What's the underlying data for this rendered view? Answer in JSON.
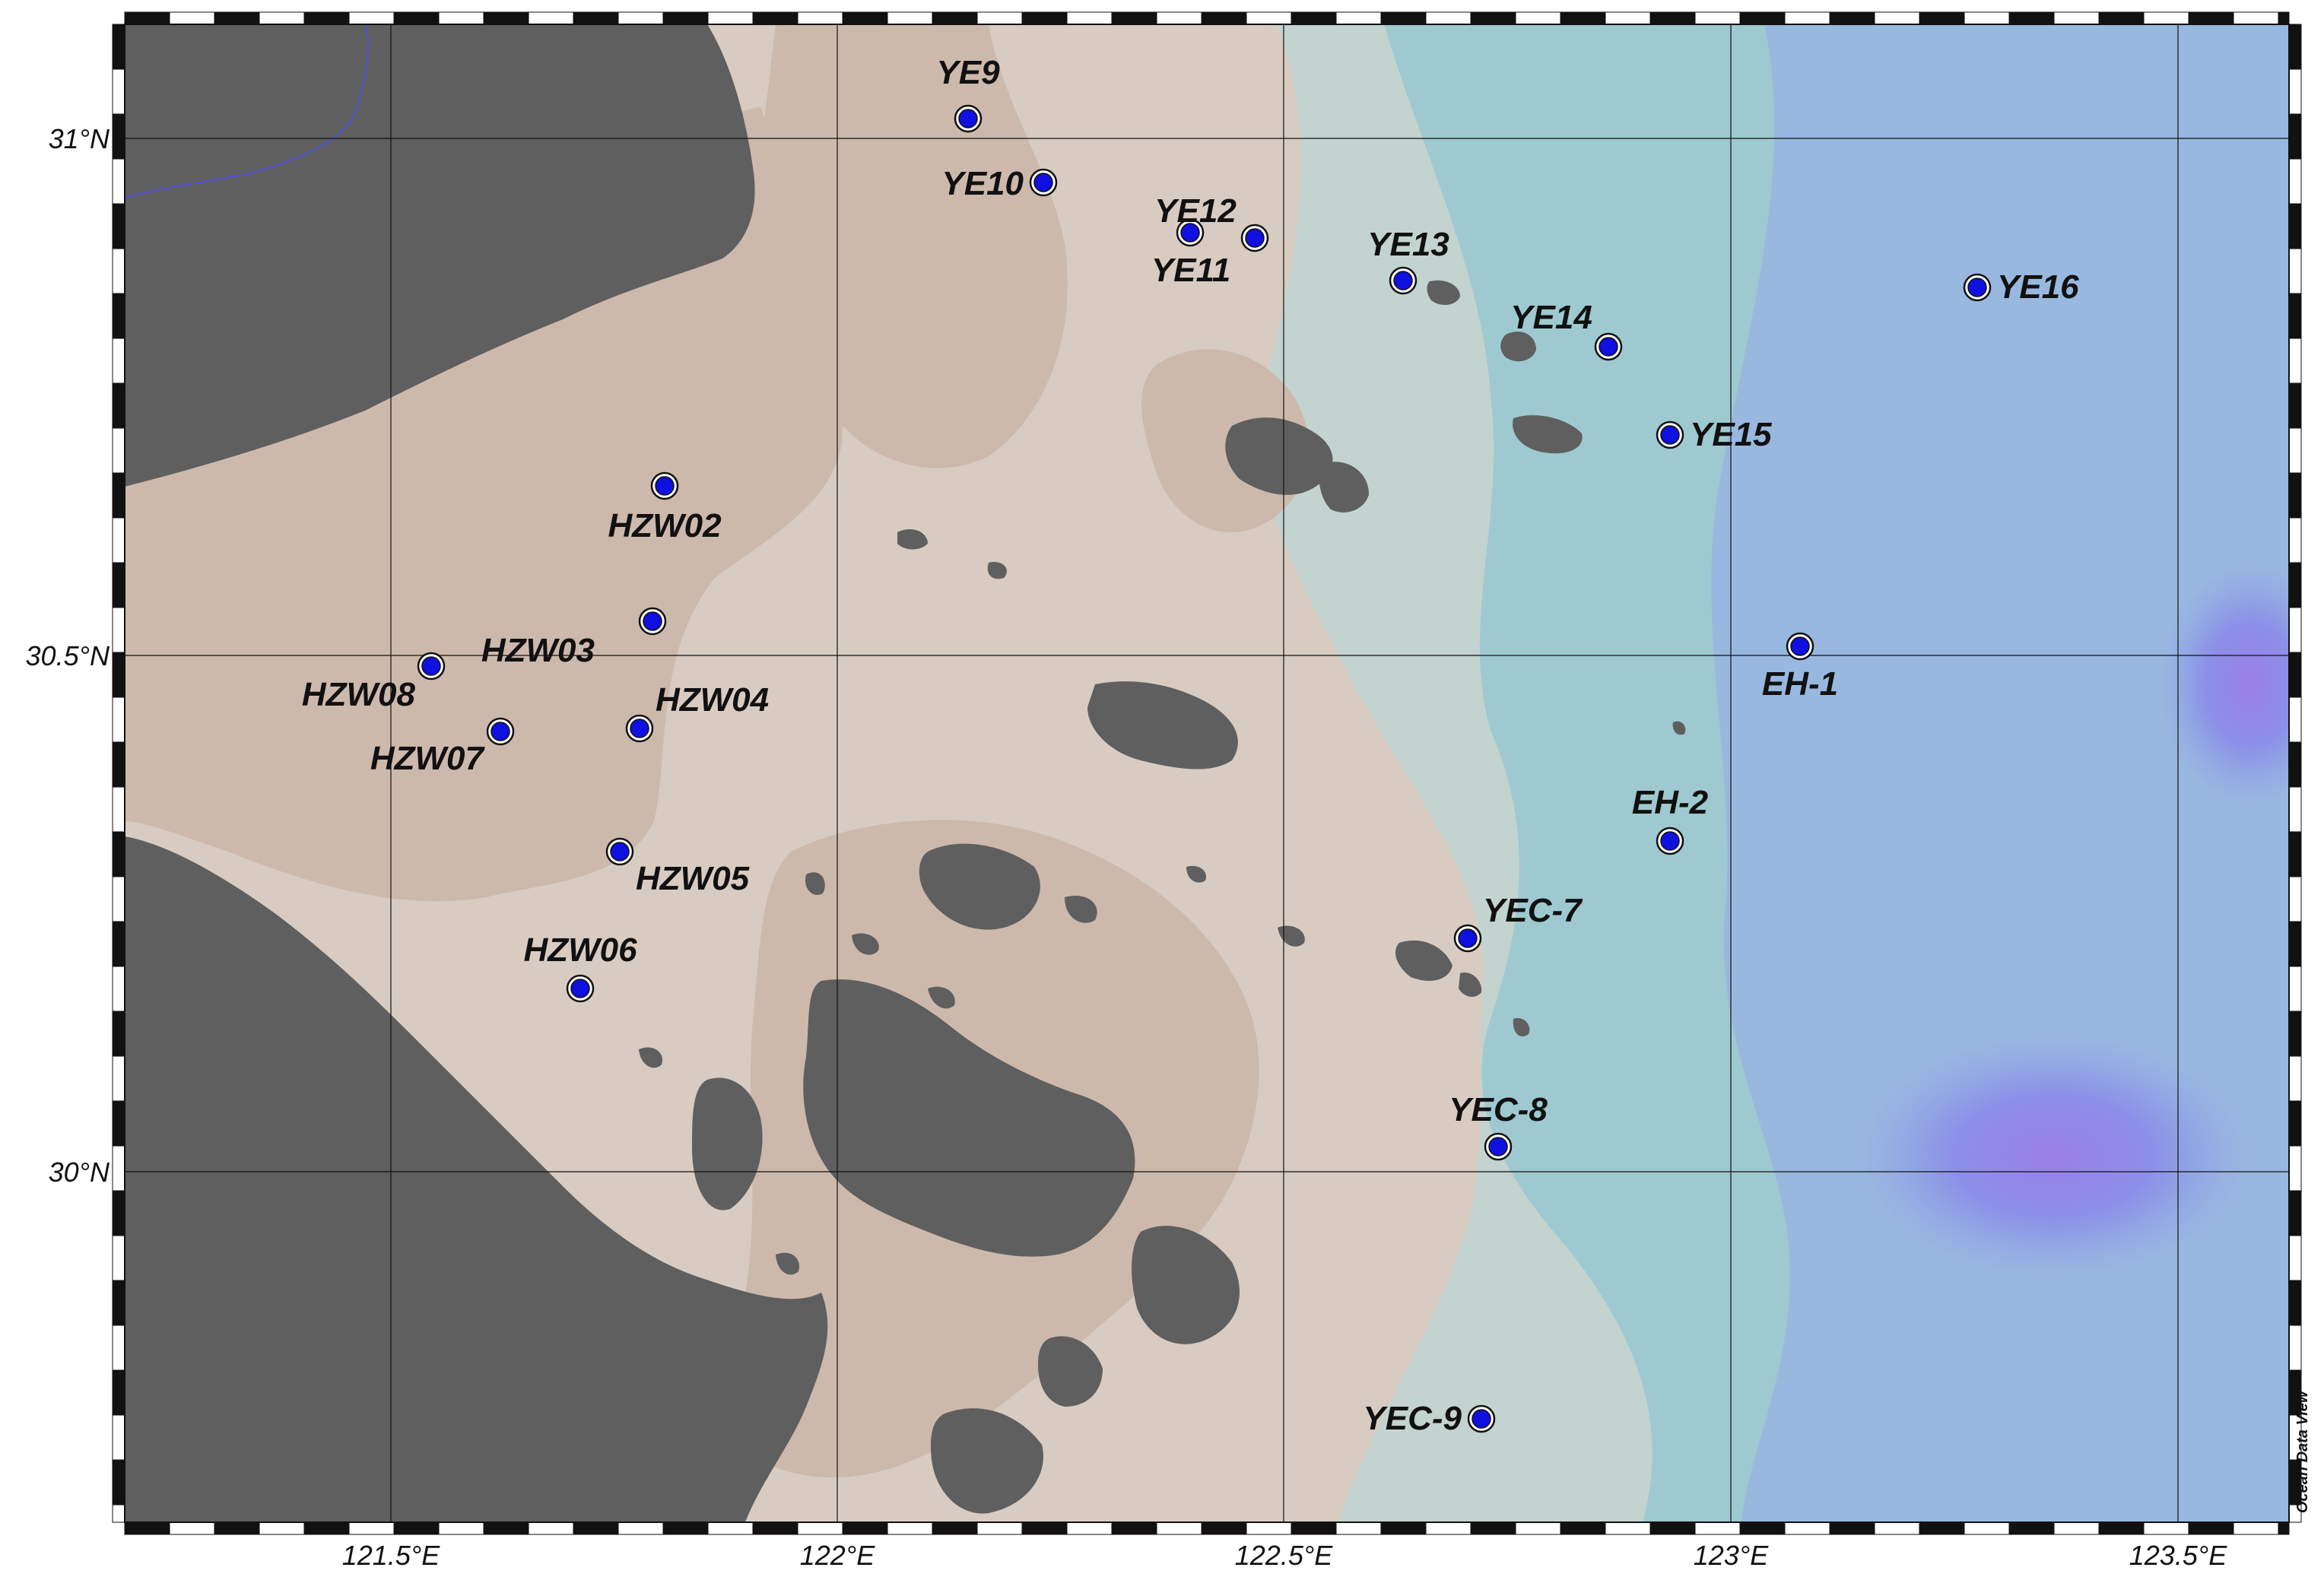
{
  "map": {
    "credit": "Ocean Data View",
    "colors": {
      "land": "#5f5f5f",
      "shallow": "#cdb9ac",
      "nearshore": "#d8ccc2",
      "mid": "#c3d3cf",
      "offshore": "#9ec9d0",
      "deep": "#99b8e0",
      "deepest": "#7f8fe8",
      "station_fill": "#1010e0",
      "grid": "#111111"
    }
  },
  "axes": {
    "x_ticks": [
      "121.5°E",
      "122°E",
      "122.5°E",
      "123°E",
      "123.5°E"
    ],
    "y_ticks": [
      "31°N",
      "30.5°N",
      "30°N"
    ]
  },
  "stations": [
    {
      "name": "YE9"
    },
    {
      "name": "YE10"
    },
    {
      "name": "YE12"
    },
    {
      "name": "YE11"
    },
    {
      "name": "YE13"
    },
    {
      "name": "YE14"
    },
    {
      "name": "YE16"
    },
    {
      "name": "YE15"
    },
    {
      "name": "HZW02"
    },
    {
      "name": "HZW03"
    },
    {
      "name": "HZW08"
    },
    {
      "name": "HZW04"
    },
    {
      "name": "HZW07"
    },
    {
      "name": "EH-1"
    },
    {
      "name": "EH-2"
    },
    {
      "name": "HZW05"
    },
    {
      "name": "YEC-7"
    },
    {
      "name": "HZW06"
    },
    {
      "name": "YEC-8"
    },
    {
      "name": "YEC-9"
    }
  ]
}
